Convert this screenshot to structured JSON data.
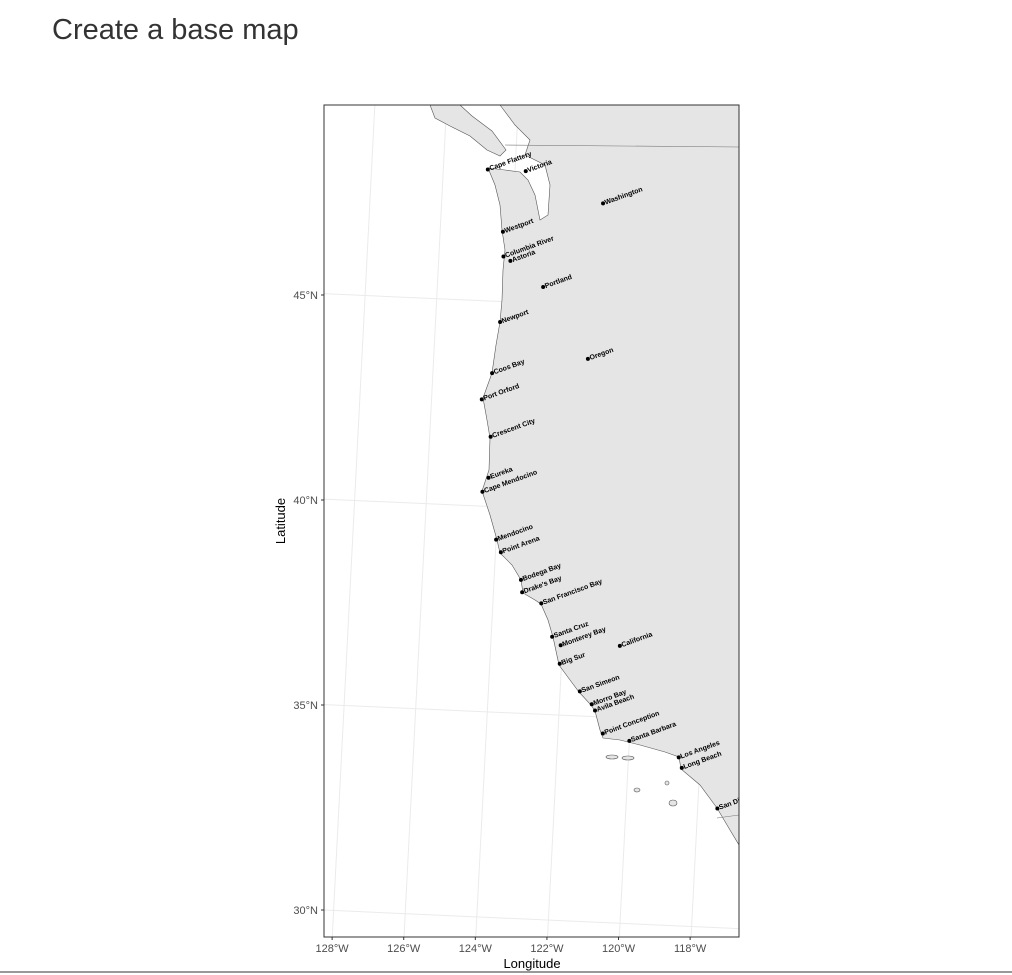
{
  "header": {
    "title": "Create a base map"
  },
  "map": {
    "x_label": "Longitude",
    "y_label": "Latitude",
    "xticks": [
      {
        "value": -128,
        "label": "128°W"
      },
      {
        "value": -126,
        "label": "126°W"
      },
      {
        "value": -124,
        "label": "124°W"
      },
      {
        "value": -122,
        "label": "122°W"
      },
      {
        "value": -120,
        "label": "120°W"
      },
      {
        "value": -118,
        "label": "118°W"
      }
    ],
    "yticks": [
      {
        "value": 30,
        "label": "30°N"
      },
      {
        "value": 35,
        "label": "35°N"
      },
      {
        "value": 40,
        "label": "40°N"
      },
      {
        "value": 45,
        "label": "45°N"
      }
    ],
    "places": [
      {
        "name": "Cape Flattery",
        "lon": -124.76,
        "lat": 48.2
      },
      {
        "name": "Victoria",
        "lon": -123.7,
        "lat": 48.2
      },
      {
        "name": "Washington",
        "lon": -121.5,
        "lat": 47.5
      },
      {
        "name": "Westport",
        "lon": -124.25,
        "lat": 46.7
      },
      {
        "name": "Columbia River",
        "lon": -124.2,
        "lat": 46.1
      },
      {
        "name": "Astoria",
        "lon": -124.0,
        "lat": 46.0
      },
      {
        "name": "Portland",
        "lon": -123.05,
        "lat": 45.4
      },
      {
        "name": "Newport",
        "lon": -124.2,
        "lat": 44.5
      },
      {
        "name": "Oregon",
        "lon": -121.7,
        "lat": 43.7
      },
      {
        "name": "Coos Bay",
        "lon": -124.35,
        "lat": 43.25
      },
      {
        "name": "Port Orford",
        "lon": -124.6,
        "lat": 42.6
      },
      {
        "name": "Crescent City",
        "lon": -124.3,
        "lat": 41.7
      },
      {
        "name": "Eureka",
        "lon": -124.3,
        "lat": 40.7
      },
      {
        "name": "Cape Mendocino",
        "lon": -124.45,
        "lat": 40.35
      },
      {
        "name": "Mendocino",
        "lon": -124.0,
        "lat": 39.2
      },
      {
        "name": "Point Arena",
        "lon": -123.85,
        "lat": 38.9
      },
      {
        "name": "Bodega Bay",
        "lon": -123.25,
        "lat": 38.25
      },
      {
        "name": "Drake's Bay",
        "lon": -123.2,
        "lat": 37.95
      },
      {
        "name": "San Francisco Bay",
        "lon": -122.65,
        "lat": 37.7
      },
      {
        "name": "Santa Cruz",
        "lon": -122.3,
        "lat": 36.9
      },
      {
        "name": "Monterey Bay",
        "lon": -122.05,
        "lat": 36.7
      },
      {
        "name": "California",
        "lon": -120.4,
        "lat": 36.75
      },
      {
        "name": "Big Sur",
        "lon": -122.05,
        "lat": 36.25
      },
      {
        "name": "San Simeon",
        "lon": -121.45,
        "lat": 35.6
      },
      {
        "name": "Morro Bay",
        "lon": -121.1,
        "lat": 35.3
      },
      {
        "name": "Avila Beach",
        "lon": -121.0,
        "lat": 35.15
      },
      {
        "name": "Point Conception",
        "lon": -120.75,
        "lat": 34.6
      },
      {
        "name": "Santa Barbara",
        "lon": -120.0,
        "lat": 34.45
      },
      {
        "name": "Los Angeles",
        "lon": -118.6,
        "lat": 34.1
      },
      {
        "name": "Long Beach",
        "lon": -118.5,
        "lat": 33.85
      },
      {
        "name": "San Diego",
        "lon": -117.45,
        "lat": 32.9
      }
    ]
  }
}
